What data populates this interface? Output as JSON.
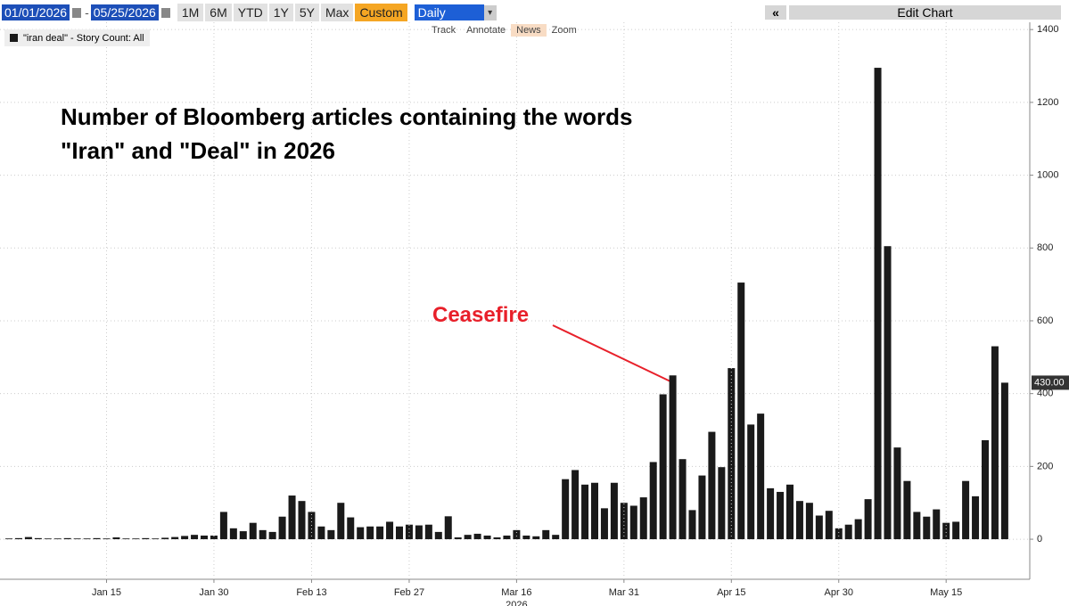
{
  "toolbar": {
    "start_date": "01/01/2026",
    "end_date": "05/25/2026",
    "ranges": [
      "1M",
      "6M",
      "YTD",
      "1Y",
      "5Y",
      "Max",
      "Custom"
    ],
    "frequency": "Daily",
    "back": "«",
    "edit": "Edit Chart",
    "tools": [
      "Track",
      "Annotate",
      "News",
      "Zoom"
    ]
  },
  "chart_data": {
    "type": "bar",
    "title": "Number of Bloomberg articles containing the words \"Iran\" and \"Deal\" in 2026",
    "annotation": "Ceasefire",
    "x_year_label": "2026",
    "categories": [
      null,
      null,
      null,
      null,
      null,
      null,
      null,
      null,
      null,
      null,
      "Jan 15",
      null,
      null,
      null,
      null,
      null,
      null,
      null,
      null,
      null,
      null,
      "Jan 30",
      null,
      null,
      null,
      null,
      null,
      null,
      null,
      null,
      null,
      "Feb 13",
      null,
      null,
      null,
      null,
      null,
      null,
      null,
      null,
      null,
      "Feb 27",
      null,
      null,
      null,
      null,
      null,
      null,
      null,
      null,
      null,
      null,
      "Mar 16",
      null,
      null,
      null,
      null,
      null,
      null,
      null,
      null,
      null,
      null,
      "Mar 31",
      null,
      null,
      null,
      null,
      null,
      null,
      null,
      null,
      null,
      null,
      "Apr 15",
      null,
      null,
      null,
      null,
      null,
      null,
      null,
      null,
      null,
      null,
      "Apr 30",
      null,
      null,
      null,
      null,
      null,
      null,
      null,
      null,
      null,
      null,
      "May 15",
      null,
      null,
      null,
      null,
      null,
      null
    ],
    "series": [
      {
        "name": "\"iran deal\" - Story Count: All",
        "color": "#1a1a1a",
        "values": [
          2,
          3,
          6,
          3,
          2,
          2,
          3,
          2,
          2,
          3,
          2,
          5,
          2,
          2,
          3,
          2,
          4,
          6,
          9,
          12,
          10,
          10,
          75,
          30,
          22,
          45,
          25,
          20,
          62,
          120,
          105,
          75,
          35,
          25,
          100,
          60,
          33,
          35,
          35,
          48,
          35,
          40,
          38,
          40,
          20,
          63,
          5,
          12,
          15,
          10,
          5,
          10,
          25,
          10,
          8,
          25,
          12,
          165,
          190,
          150,
          155,
          85,
          155,
          100,
          92,
          115,
          212,
          398,
          450,
          220,
          80,
          175,
          295,
          198,
          470,
          705,
          315,
          345,
          140,
          130,
          150,
          105,
          100,
          65,
          78,
          30,
          40,
          55,
          110,
          1295,
          805,
          252,
          160,
          75,
          62,
          82,
          45,
          48,
          160,
          118,
          272,
          530,
          430
        ],
        "value_labels": [
          null,
          null,
          null,
          null,
          null,
          null,
          null,
          null,
          null,
          null,
          null,
          null,
          null,
          null,
          null,
          null,
          null,
          null,
          null,
          null,
          null,
          null,
          null,
          null,
          null,
          null,
          null,
          null,
          null,
          null,
          null,
          null,
          null,
          null,
          null,
          null,
          null,
          null,
          null,
          null,
          null,
          null,
          null,
          null,
          null,
          null,
          null,
          null,
          null,
          null,
          null,
          null,
          null,
          null,
          null,
          null,
          null,
          null,
          null,
          null,
          null,
          null,
          null,
          null,
          null,
          null,
          null,
          null,
          null,
          null,
          null,
          null,
          null,
          null,
          null,
          null,
          null,
          null,
          null,
          null,
          null,
          null,
          null,
          null,
          null,
          null,
          null,
          null,
          null,
          null,
          null,
          null,
          null,
          null,
          null,
          null,
          null,
          null,
          null,
          null,
          null,
          null,
          "430.00"
        ]
      }
    ],
    "ylim": [
      -110,
      1420
    ],
    "yticks": [
      0,
      200,
      400,
      600,
      800,
      1000,
      1200,
      1400
    ],
    "grid": true
  }
}
